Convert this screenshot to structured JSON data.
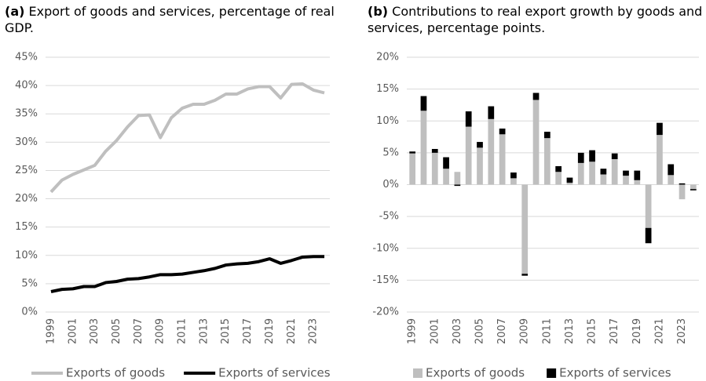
{
  "chart_data": [
    {
      "type": "line",
      "label": "(a)",
      "title": "Export of goods and services, percentage of real GDP.",
      "categories": [
        "1999",
        null,
        "2001",
        null,
        "2003",
        null,
        "2005",
        null,
        "2007",
        null,
        "2009",
        null,
        "2011",
        null,
        "2013",
        null,
        "2015",
        null,
        "2017",
        null,
        "2019",
        null,
        "2021",
        null,
        "2023",
        null
      ],
      "series": [
        {
          "name": "Exports of goods",
          "color": "#bfbfbf",
          "values": [
            21.2,
            23.3,
            24.3,
            25.1,
            25.9,
            28.4,
            30.3,
            32.7,
            34.7,
            34.8,
            30.8,
            34.3,
            36.0,
            36.7,
            36.7,
            37.4,
            38.5,
            38.5,
            39.4,
            39.8,
            39.8,
            37.8,
            40.2,
            40.3,
            39.2,
            38.7
          ]
        },
        {
          "name": "Exports of services",
          "color": "#000000",
          "values": [
            3.6,
            4.0,
            4.1,
            4.5,
            4.5,
            5.2,
            5.4,
            5.8,
            5.9,
            6.2,
            6.6,
            6.6,
            6.7,
            7.0,
            7.3,
            7.7,
            8.3,
            8.5,
            8.6,
            8.9,
            9.4,
            8.6,
            9.1,
            9.7,
            9.8,
            9.8
          ]
        }
      ],
      "ylim": [
        0,
        45
      ],
      "yticks": [
        {
          "value": 0,
          "label": "0%"
        },
        {
          "value": 5,
          "label": "5%"
        },
        {
          "value": 10,
          "label": "10%"
        },
        {
          "value": 15,
          "label": "15%"
        },
        {
          "value": 20,
          "label": "20%"
        },
        {
          "value": 25,
          "label": "25%"
        },
        {
          "value": 30,
          "label": "30%"
        },
        {
          "value": 35,
          "label": "35%"
        },
        {
          "value": 40,
          "label": "40%"
        },
        {
          "value": 45,
          "label": "45%"
        }
      ],
      "grid": true,
      "legend": "bottom"
    },
    {
      "type": "bar",
      "stacked": true,
      "label": "(b)",
      "title": "Contributions to real export growth by goods and services, percentage points.",
      "categories": [
        "1999",
        null,
        "2001",
        null,
        "2003",
        null,
        "2005",
        null,
        "2007",
        null,
        "2009",
        null,
        "2011",
        null,
        "2013",
        null,
        "2015",
        null,
        "2017",
        null,
        "2019",
        null,
        "2021",
        null,
        "2023",
        null
      ],
      "series": [
        {
          "name": "Exports of goods",
          "color": "#bfbfbf",
          "values": [
            4.9,
            11.6,
            5.0,
            2.5,
            2.0,
            9.1,
            5.8,
            10.3,
            7.9,
            1.0,
            -14.0,
            13.3,
            7.3,
            2.0,
            0.3,
            3.4,
            3.6,
            1.6,
            4.0,
            1.4,
            0.7,
            -6.8,
            7.8,
            1.5,
            -2.3,
            -0.7
          ]
        },
        {
          "name": "Exports of services",
          "color": "#000000",
          "values": [
            0.3,
            2.3,
            0.6,
            1.8,
            -0.2,
            2.4,
            0.9,
            2.0,
            0.9,
            0.9,
            -0.3,
            1.1,
            1.0,
            0.9,
            0.8,
            1.6,
            1.8,
            0.9,
            0.9,
            0.8,
            1.5,
            -2.4,
            1.9,
            1.7,
            0.2,
            -0.2
          ]
        }
      ],
      "ylim": [
        -20,
        20
      ],
      "yticks": [
        {
          "value": -20,
          "label": "-20%"
        },
        {
          "value": -15,
          "label": "-15%"
        },
        {
          "value": -10,
          "label": "-10%"
        },
        {
          "value": -5,
          "label": "-5%"
        },
        {
          "value": 0,
          "label": "0%"
        },
        {
          "value": 5,
          "label": "5%"
        },
        {
          "value": 10,
          "label": "10%"
        },
        {
          "value": 15,
          "label": "15%"
        },
        {
          "value": 20,
          "label": "20%"
        }
      ],
      "grid": true,
      "legend": "bottom"
    }
  ]
}
